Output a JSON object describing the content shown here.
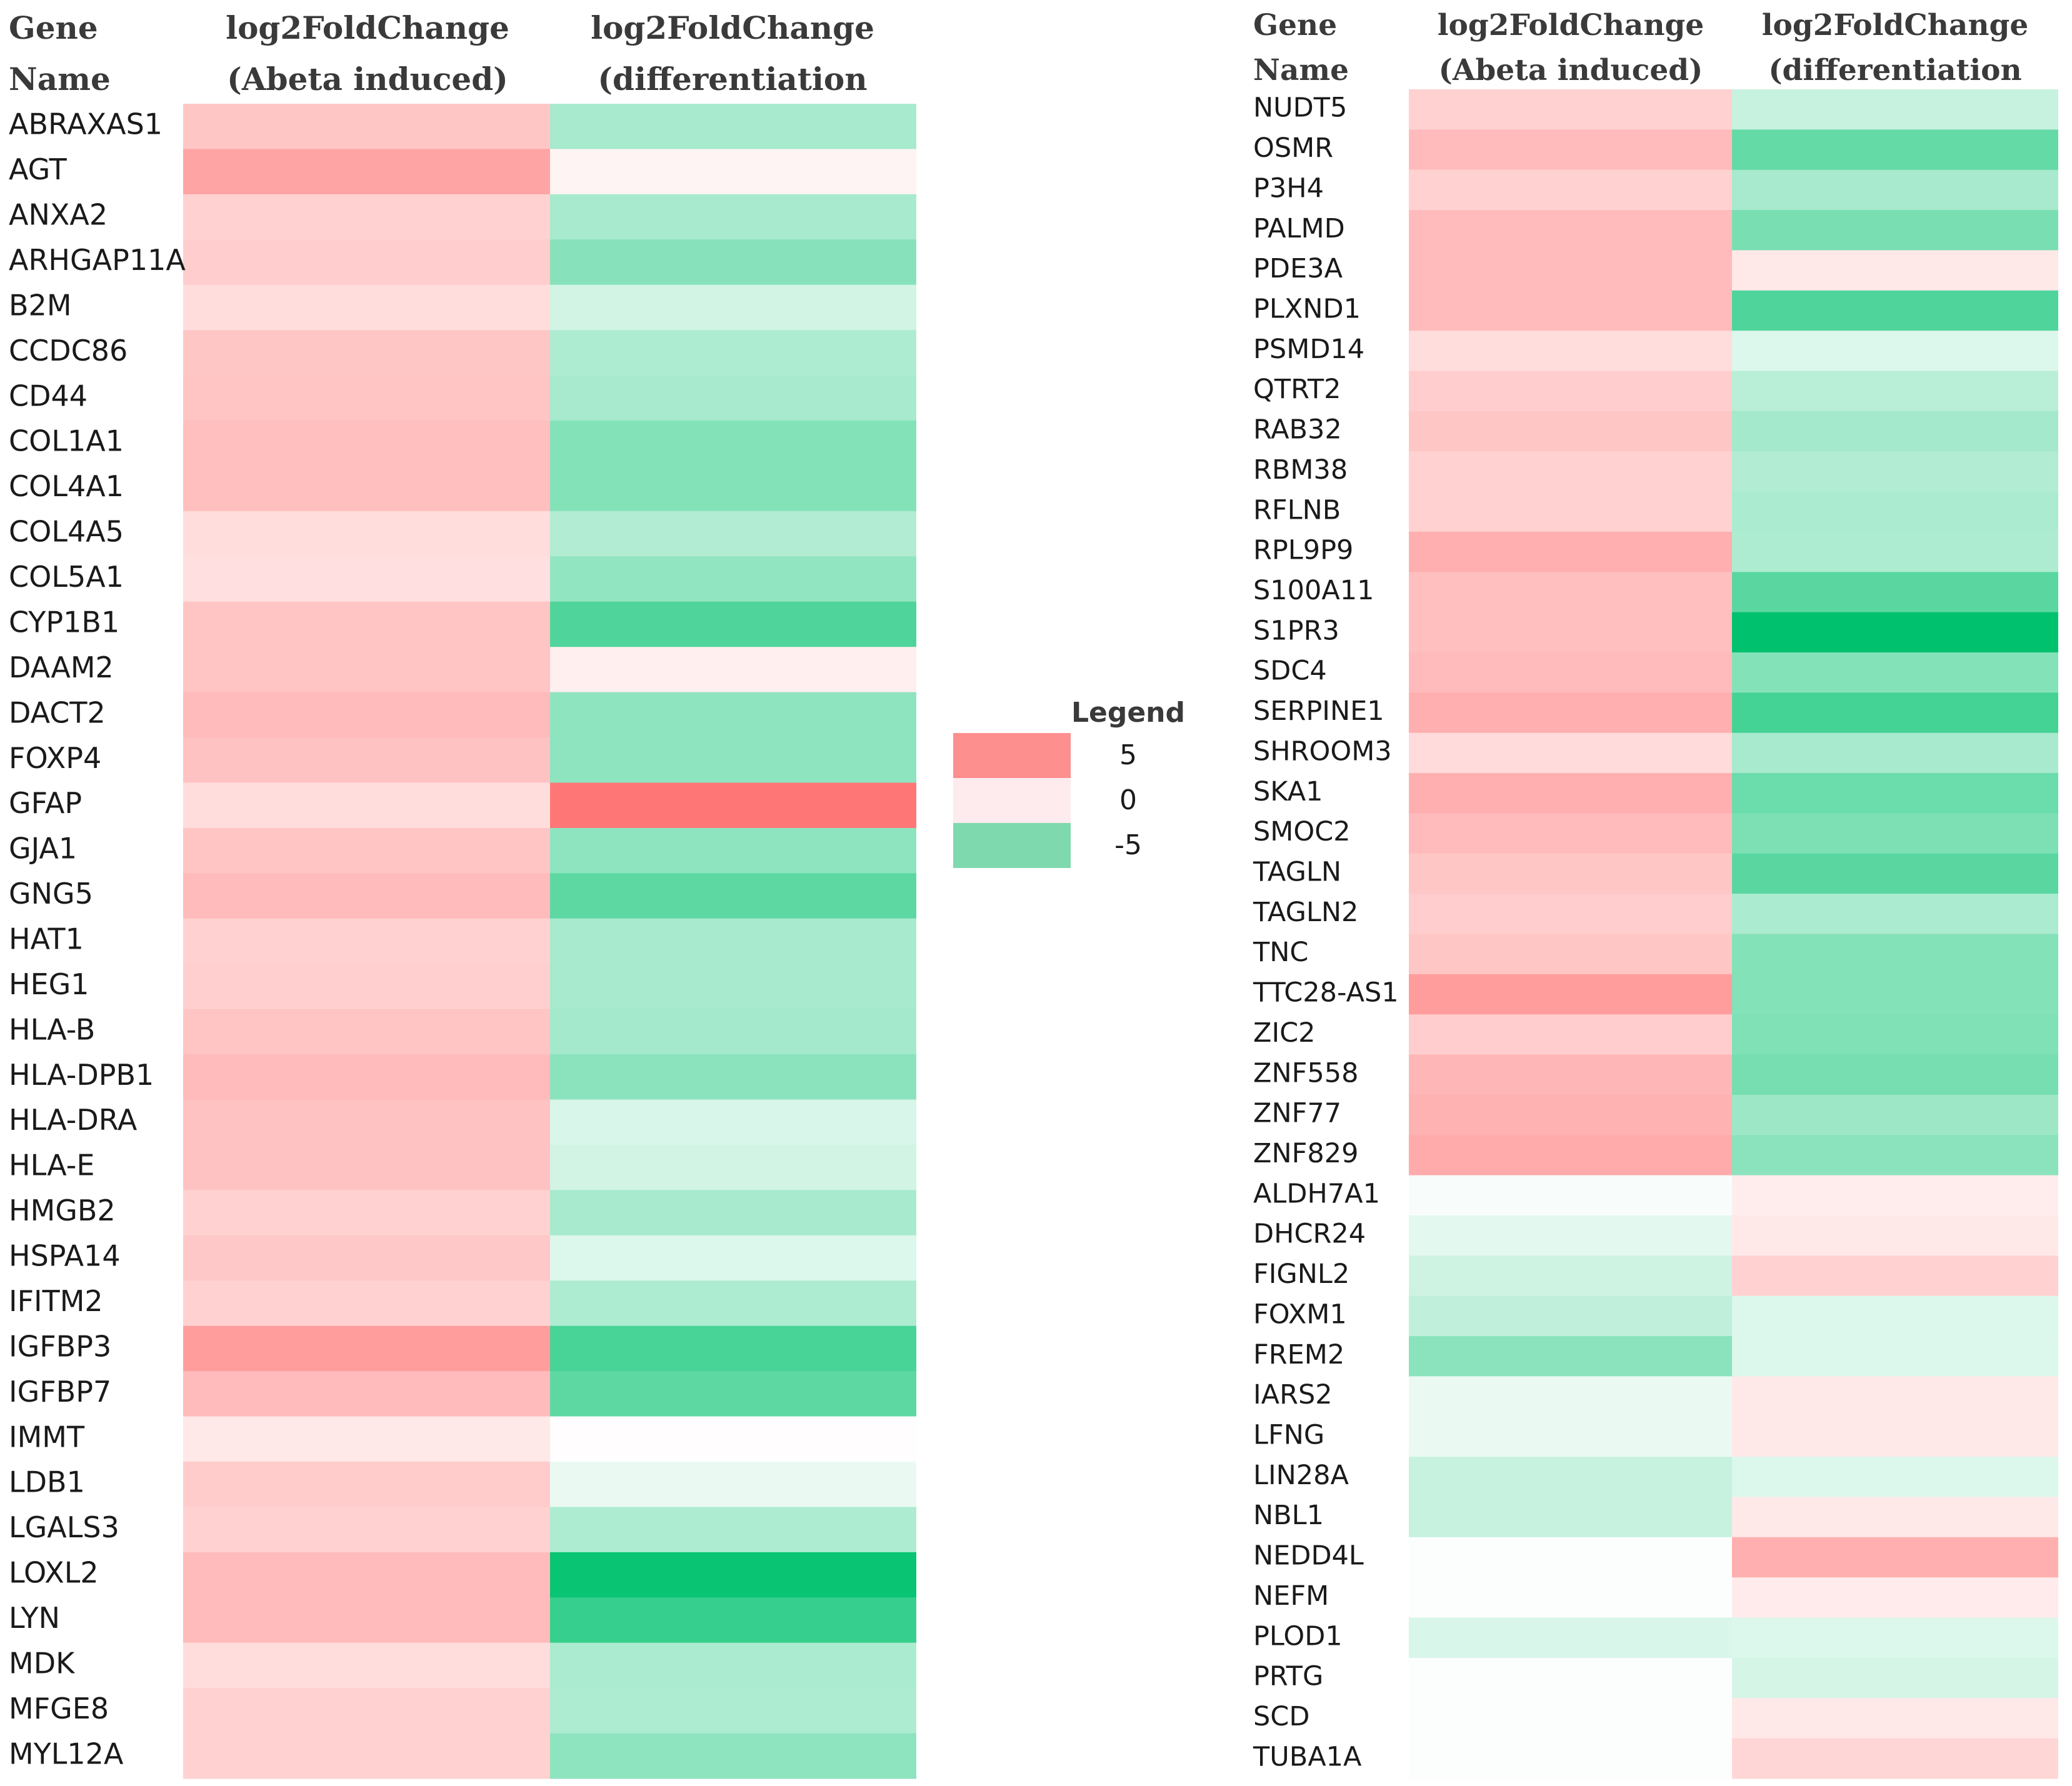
{
  "chart_data": {
    "type": "heatmap",
    "color_scale": {
      "min": -5,
      "mid": 0,
      "max": 5,
      "low_color": "#00c26e",
      "mid_color": "#ffffff",
      "high_color": "#ff5a5a"
    },
    "legend": {
      "title": "Legend",
      "entries": [
        {
          "label": "5",
          "value": 5,
          "color": "#fe8f8f"
        },
        {
          "label": "0",
          "value": 0,
          "color": "#fdebee"
        },
        {
          "label": "-5",
          "value": -5,
          "color": "#7fd9ae"
        }
      ]
    },
    "panels": [
      {
        "headers": {
          "gene": [
            "Gene",
            "Name"
          ],
          "abeta": [
            "log2FoldChange",
            "(Abeta induced)"
          ],
          "diff": [
            "log2FoldChange",
            "(differentiation"
          ]
        },
        "genes": [
          "ABRAXAS1",
          "AGT",
          "ANXA2",
          "ARHGAP11A",
          "B2M",
          "CCDC86",
          "CD44",
          "COL1A1",
          "COL4A1",
          "COL4A5",
          "COL5A1",
          "CYP1B1",
          "DAAM2",
          "DACT2",
          "FOXP4",
          "GFAP",
          "GJA1",
          "GNG5",
          "HAT1",
          "HEG1",
          "HLA-B",
          "HLA-DPB1",
          "HLA-DRA",
          "HLA-E",
          "HMGB2",
          "HSPA14",
          "IFITM2",
          "IGFBP3",
          "IGFBP7",
          "IMMT",
          "LDB1",
          "LGALS3",
          "LOXL2",
          "LYN",
          "MDK",
          "MFGE8",
          "MYL12A"
        ],
        "abeta_values": [
          2.5,
          4.0,
          2.0,
          2.2,
          1.5,
          2.5,
          2.6,
          2.8,
          2.8,
          1.5,
          1.4,
          2.6,
          2.6,
          3.0,
          2.7,
          1.5,
          2.6,
          3.0,
          2.0,
          2.1,
          2.6,
          3.0,
          2.7,
          2.7,
          2.0,
          2.4,
          2.0,
          4.3,
          3.0,
          1.0,
          2.3,
          2.0,
          3.0,
          3.0,
          1.5,
          2.0,
          2.0
        ],
        "diff_values": [
          -2.5,
          0.5,
          -2.5,
          -3.4,
          -1.3,
          -2.3,
          -2.5,
          -3.5,
          -3.5,
          -2.2,
          -3.1,
          -5.0,
          0.7,
          -3.2,
          -3.2,
          6.0,
          -3.2,
          -4.6,
          -2.5,
          -2.5,
          -2.6,
          -3.3,
          -1.1,
          -1.3,
          -2.5,
          -1.0,
          -2.3,
          -5.2,
          -4.6,
          0.1,
          -0.6,
          -2.3,
          -7.0,
          -5.7,
          -2.4,
          -2.3,
          -3.2
        ]
      },
      {
        "headers": {
          "gene": [
            "Gene",
            "Name"
          ],
          "abeta": [
            "log2FoldChange",
            "(Abeta induced)"
          ],
          "diff": [
            "log2FoldChange",
            "(differentiation"
          ]
        },
        "genes": [
          "NUDT5",
          "OSMR",
          "P3H4",
          "PALMD",
          "PDE3A",
          "PLXND1",
          "PSMD14",
          "QTRT2",
          "RAB32",
          "RBM38",
          "RFLNB",
          "RPL9P9",
          "S100A11",
          "S1PR3",
          "SDC4",
          "SERPINE1",
          "SHROOM3",
          "SKA1",
          "SMOC2",
          "TAGLN",
          "TAGLN2",
          "TNC",
          "TTC28-AS1",
          "ZIC2",
          "ZNF558",
          "ZNF77",
          "ZNF829",
          "ALDH7A1",
          "DHCR24",
          "FIGNL2",
          "FOXM1",
          "FREM2",
          "IARS2",
          "LFNG",
          "LIN28A",
          "NBL1",
          "NEDD4L",
          "NEFM",
          "PLOD1",
          "PRTG",
          "SCD",
          "TUBA1A"
        ],
        "abeta_values": [
          2.0,
          3.0,
          2.0,
          3.0,
          3.0,
          3.0,
          1.5,
          2.2,
          2.5,
          2.0,
          2.0,
          3.5,
          2.8,
          2.8,
          3.0,
          3.5,
          1.6,
          3.5,
          3.0,
          2.5,
          2.2,
          2.5,
          4.3,
          2.2,
          3.2,
          3.4,
          3.7,
          -0.2,
          -0.8,
          -1.4,
          -1.8,
          -3.3,
          -0.6,
          -0.6,
          -1.6,
          -1.6,
          -0.1,
          -0.1,
          -1.1,
          -0.1,
          -0.1,
          -0.1
        ],
        "diff_values": [
          -1.6,
          -4.4,
          -2.5,
          -3.8,
          1.0,
          -5.0,
          -1.0,
          -2.0,
          -2.6,
          -2.2,
          -2.4,
          -2.3,
          -4.7,
          -7.5,
          -3.5,
          -5.3,
          -2.5,
          -4.2,
          -3.7,
          -4.7,
          -2.4,
          -3.5,
          -3.5,
          -3.6,
          -3.9,
          -2.8,
          -3.3,
          0.8,
          1.0,
          2.0,
          -1.0,
          -1.0,
          1.0,
          1.0,
          -1.0,
          1.0,
          3.5,
          0.9,
          -1.0,
          -1.2,
          1.0,
          1.8
        ]
      }
    ]
  }
}
